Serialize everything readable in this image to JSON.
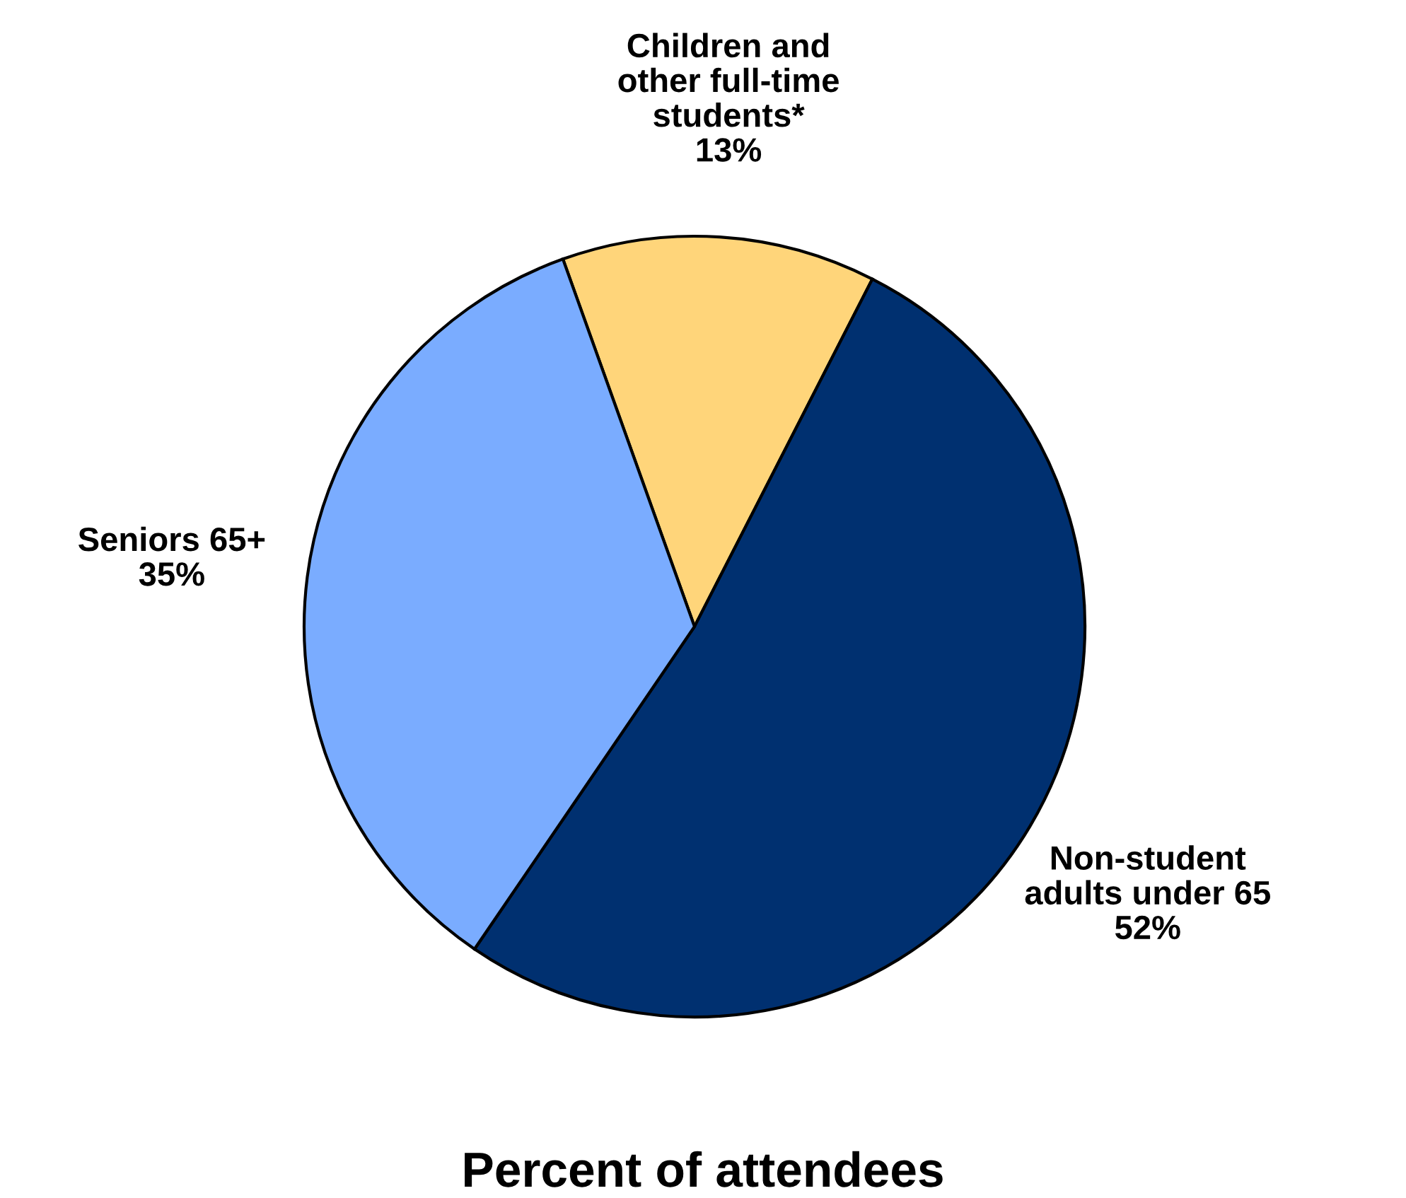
{
  "chart_data": {
    "type": "pie",
    "title": "Percent of attendees",
    "categories": [
      "Children and\nother full-time\nstudents*",
      "Non-student\nadults under 65",
      "Seniors 65+"
    ],
    "values": [
      13,
      52,
      35
    ],
    "colors": [
      "#ffd57a",
      "#003070",
      "#7aacff"
    ],
    "value_labels": [
      "13%",
      "52%",
      "35%"
    ]
  }
}
